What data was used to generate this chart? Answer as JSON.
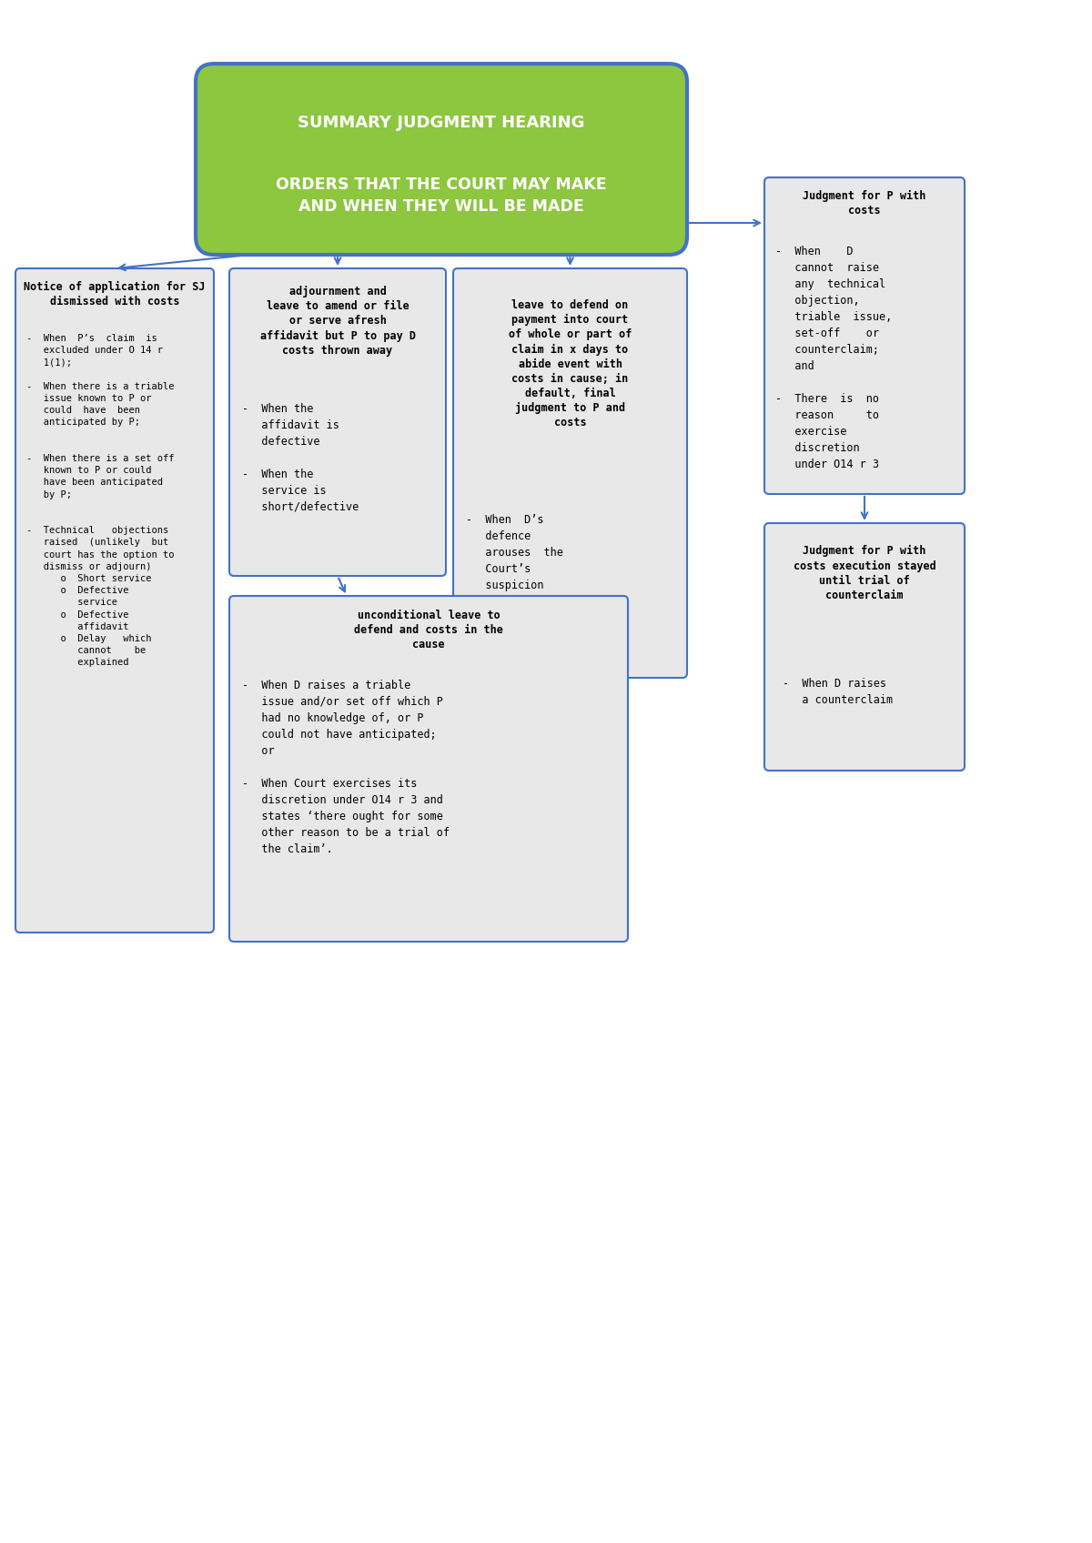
{
  "title_line1": "SUMMARY JUDGMENT HEARING",
  "title_line2": "ORDERS THAT THE COURT MAY MAKE\nAND WHEN THEY WILL BE MADE",
  "title_bg": "#8dc63f",
  "title_border": "#4472c4",
  "title_text_color": "#ffffff",
  "box_bg": "#e8e8e8",
  "box_border": "#4472c4",
  "box_text_color": "#000000",
  "arrow_color": "#4472c4",
  "page_bg": "#ffffff",
  "box1_title": "Notice of application for SJ\ndismissed with costs",
  "box1_body": "-  When  P’s  claim  is\n   excluded under O 14 r\n   1(1);\n\n-  When there is a triable\n   issue known to P or\n   could  have  been\n   anticipated by P;\n\n\n-  When there is a set off\n   known to P or could\n   have been anticipated\n   by P;\n\n\n-  Technical   objections\n   raised  (unlikely  but\n   court has the option to\n   dismiss or adjourn)\n      o  Short service\n      o  Defective\n         service\n      o  Defective\n         affidavit\n      o  Delay   which\n         cannot    be\n         explained",
  "box2_title": "adjournment and\nleave to amend or file\nor serve afresh\naffidavit but P to pay D\ncosts thrown away",
  "box2_body": "-  When the\n   affidavit is\n   defective\n\n-  When the\n   service is\n   short/defective",
  "box3_title": "leave to defend on\npayment into court\nof whole or part of\nclaim in x days to\nabide event with\ncosts in cause; in\ndefault, final\njudgment to P and\ncosts",
  "box3_body": "-  When  D’s\n   defence\n   arouses  the\n   Court’s\n   suspicion",
  "box4_title": "Judgment for P with\ncosts",
  "box4_body": "-  When    D\n   cannot  raise\n   any  technical\n   objection,\n   triable  issue,\n   set-off    or\n   counterclaim;\n   and\n\n-  There  is  no\n   reason     to\n   exercise\n   discretion\n   under O14 r 3",
  "box5_title": "unconditional leave to\ndefend and costs in the\ncause",
  "box5_body": "-  When D raises a triable\n   issue and/or set off which P\n   had no knowledge of, or P\n   could not have anticipated;\n   or\n\n-  When Court exercises its\n   discretion under O14 r 3 and\n   states ‘there ought for some\n   other reason to be a trial of\n   the claim’.",
  "box6_title": "Judgment for P with\ncosts execution stayed\nuntil trial of\ncounterclaim",
  "box6_body": "-  When D raises\n   a counterclaim"
}
